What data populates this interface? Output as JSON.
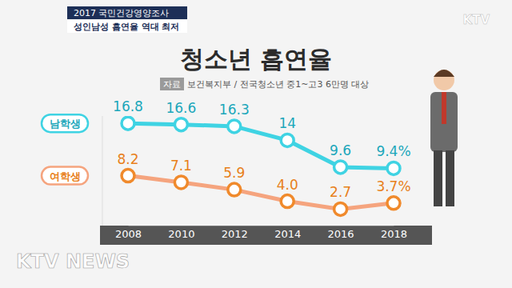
{
  "chart_data": {
    "type": "line",
    "title": "청소년 흡연율",
    "subtitle": "보건복지부 / 전국청소년 중1~고3 6만명 대상",
    "annotations": [
      "2017 국민건강영양조사",
      "성인남성 흡연율 역대 최저",
      "자료",
      "KTV",
      "KTV NEWS"
    ],
    "categories": [
      "2008",
      "2010",
      "2012",
      "2014",
      "2016",
      "2018"
    ],
    "series": [
      {
        "name": "남학생",
        "color": "#3fd3e3",
        "marker": "circle",
        "values": [
          16.8,
          16.6,
          16.3,
          14,
          9.6,
          9.4
        ],
        "value_labels": [
          "16.8",
          "16.6",
          "16.3",
          "14",
          "9.6",
          "9.4%"
        ]
      },
      {
        "name": "여학생",
        "color": "#f5a47e",
        "marker": "circle",
        "values": [
          8.2,
          7.1,
          5.9,
          4.0,
          2.7,
          3.7
        ],
        "value_labels": [
          "8.2",
          "7.1",
          "5.9",
          "4.0",
          "2.7",
          "3.7%"
        ]
      }
    ],
    "ylim": [
      0,
      18
    ],
    "data_labels": true,
    "tick_labels": "x",
    "grid": false
  }
}
